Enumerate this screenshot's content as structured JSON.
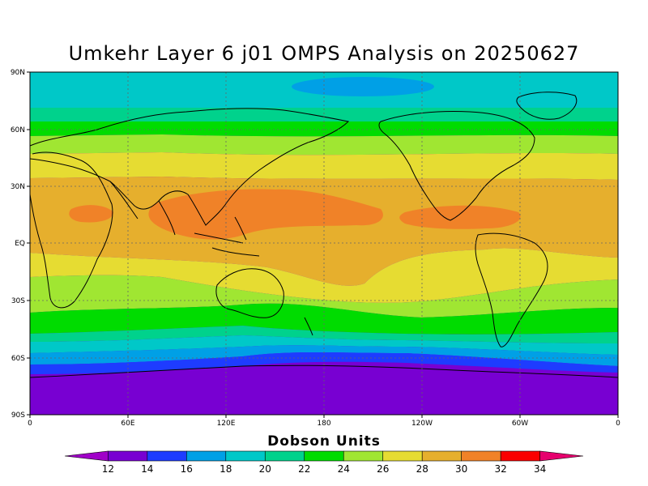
{
  "title": "Umkehr Layer 6 j01 OMPS Analysis on 20250627",
  "colorbar_title": "Dobson Units",
  "lat_labels": [
    "90N",
    "60N",
    "30N",
    "EQ",
    "30S",
    "60S",
    "90S"
  ],
  "lon_labels": [
    "0",
    "60E",
    "120E",
    "180",
    "120W",
    "60W",
    "0"
  ],
  "colorbar": {
    "labels": [
      "12",
      "14",
      "16",
      "18",
      "20",
      "22",
      "24",
      "26",
      "28",
      "30",
      "32",
      "34"
    ],
    "colors": [
      "#a000c8",
      "#7800d2",
      "#1e3cff",
      "#00a0e6",
      "#00c8c8",
      "#00d28c",
      "#00dc00",
      "#a0e632",
      "#e6dc32",
      "#e6af2d",
      "#f08228",
      "#fa0000",
      "#e6006e"
    ]
  }
}
